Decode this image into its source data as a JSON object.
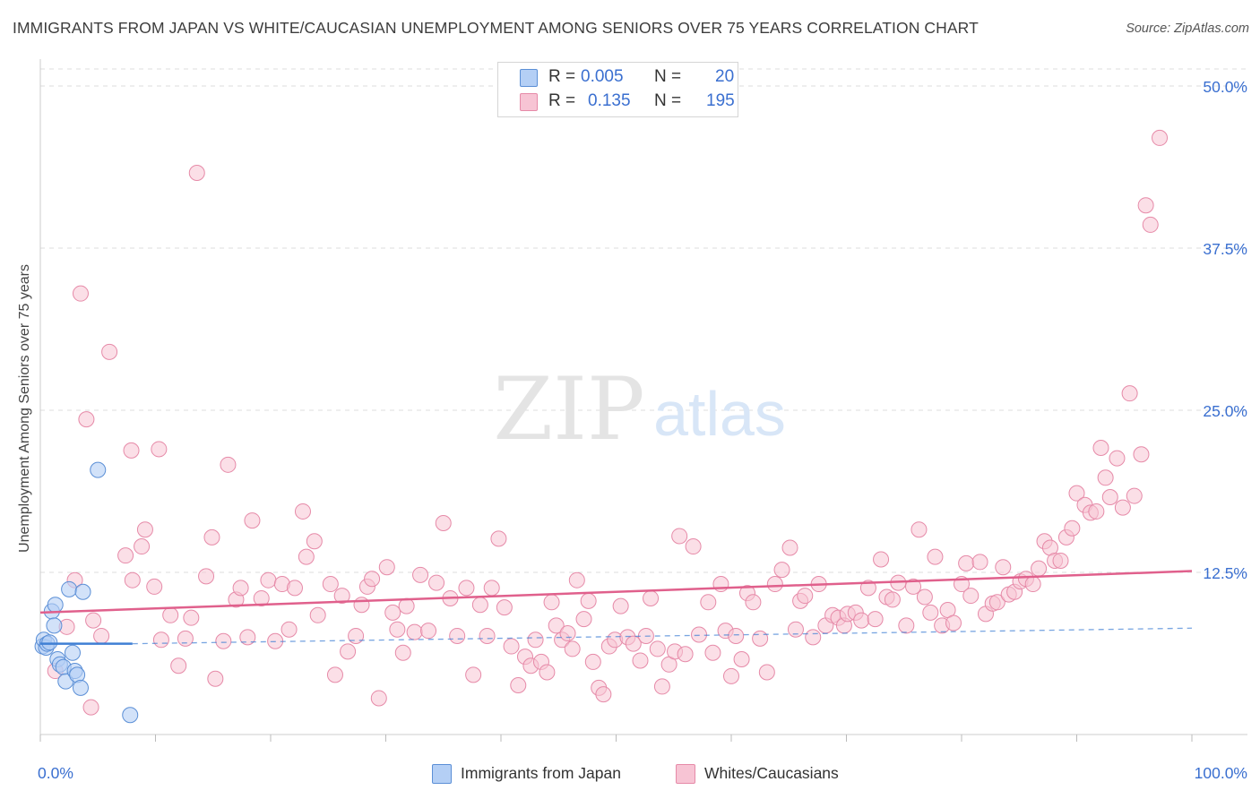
{
  "title": "IMMIGRANTS FROM JAPAN VS WHITE/CAUCASIAN UNEMPLOYMENT AMONG SENIORS OVER 75 YEARS CORRELATION CHART",
  "source": "Source: ZipAtlas.com",
  "watermark": {
    "zip": "ZIP",
    "atlas": "atlas"
  },
  "colors": {
    "japan_fill": "#b4cff5",
    "japan_stroke": "#5b8fd6",
    "japan_line": "#3f7fd4",
    "white_fill": "#f7c4d4",
    "white_stroke": "#e68aa8",
    "white_line": "#e0608c",
    "axis_label": "#3a6fd0",
    "grid": "#dddddd"
  },
  "legend": {
    "r_label": "R =",
    "n_label": "N =",
    "series": [
      {
        "name": "Immigrants from Japan",
        "r": "0.005",
        "n": "20"
      },
      {
        "name": "Whites/Caucasians",
        "r": "0.135",
        "n": "195"
      }
    ]
  },
  "chart_data": {
    "type": "scatter",
    "title": "IMMIGRANTS FROM JAPAN VS WHITE/CAUCASIAN UNEMPLOYMENT AMONG SENIORS OVER 75 YEARS CORRELATION CHART",
    "xlabel": "",
    "ylabel": "Unemployment Among Seniors over 75 years",
    "xlim": [
      0,
      100
    ],
    "ylim": [
      0,
      50
    ],
    "x_tick_labels": [
      "0.0%",
      "100.0%"
    ],
    "y_ticks": [
      12.5,
      25.0,
      37.5,
      50.0
    ],
    "y_tick_labels": [
      "12.5%",
      "25.0%",
      "37.5%",
      "50.0%"
    ],
    "grid": true,
    "legend_position": "top-center",
    "series": [
      {
        "name": "Immigrants from Japan",
        "trend": {
          "x": [
            0,
            8
          ],
          "y": [
            7.0,
            7.0
          ],
          "extended_to_x": 100,
          "extended_y": 8.2
        },
        "points": [
          [
            0.2,
            6.8
          ],
          [
            0.3,
            7.3
          ],
          [
            0.5,
            6.7
          ],
          [
            0.6,
            7.0
          ],
          [
            0.8,
            7.1
          ],
          [
            1.0,
            9.5
          ],
          [
            1.2,
            8.4
          ],
          [
            1.3,
            10.0
          ],
          [
            1.5,
            5.8
          ],
          [
            1.7,
            5.4
          ],
          [
            2.0,
            5.2
          ],
          [
            2.2,
            4.1
          ],
          [
            2.5,
            11.2
          ],
          [
            2.8,
            6.3
          ],
          [
            3.0,
            4.9
          ],
          [
            3.2,
            4.6
          ],
          [
            3.5,
            3.6
          ],
          [
            3.7,
            11.0
          ],
          [
            5.0,
            20.4
          ],
          [
            7.8,
            1.5
          ]
        ]
      },
      {
        "name": "Whites/Caucasians",
        "trend": {
          "x": [
            0,
            100
          ],
          "y": [
            9.4,
            12.6
          ]
        },
        "points": [
          [
            1.3,
            4.9
          ],
          [
            2.3,
            8.3
          ],
          [
            3.0,
            11.9
          ],
          [
            3.5,
            34.0
          ],
          [
            4.0,
            24.3
          ],
          [
            4.4,
            2.1
          ],
          [
            4.6,
            8.8
          ],
          [
            5.3,
            7.6
          ],
          [
            6.0,
            29.5
          ],
          [
            7.4,
            13.8
          ],
          [
            7.9,
            21.9
          ],
          [
            8.0,
            11.9
          ],
          [
            8.8,
            14.5
          ],
          [
            9.1,
            15.8
          ],
          [
            9.9,
            11.4
          ],
          [
            10.3,
            22.0
          ],
          [
            10.5,
            7.3
          ],
          [
            11.3,
            9.2
          ],
          [
            12.0,
            5.3
          ],
          [
            12.6,
            7.4
          ],
          [
            13.1,
            9.0
          ],
          [
            13.6,
            43.3
          ],
          [
            14.4,
            12.2
          ],
          [
            14.9,
            15.2
          ],
          [
            15.2,
            4.3
          ],
          [
            15.9,
            7.2
          ],
          [
            16.3,
            20.8
          ],
          [
            17.0,
            10.4
          ],
          [
            17.4,
            11.3
          ],
          [
            18.0,
            7.5
          ],
          [
            18.4,
            16.5
          ],
          [
            19.2,
            10.5
          ],
          [
            19.8,
            11.9
          ],
          [
            20.4,
            7.2
          ],
          [
            21.0,
            11.6
          ],
          [
            21.6,
            8.1
          ],
          [
            22.1,
            11.3
          ],
          [
            22.8,
            17.2
          ],
          [
            23.1,
            13.7
          ],
          [
            23.8,
            14.9
          ],
          [
            24.1,
            9.2
          ],
          [
            25.2,
            11.6
          ],
          [
            25.6,
            4.6
          ],
          [
            26.2,
            10.7
          ],
          [
            26.7,
            6.4
          ],
          [
            27.4,
            7.6
          ],
          [
            27.9,
            10.0
          ],
          [
            28.4,
            11.4
          ],
          [
            28.8,
            12.0
          ],
          [
            29.4,
            2.8
          ],
          [
            30.1,
            12.9
          ],
          [
            30.6,
            9.4
          ],
          [
            31.0,
            8.1
          ],
          [
            31.5,
            6.3
          ],
          [
            31.8,
            9.9
          ],
          [
            32.5,
            7.9
          ],
          [
            33.0,
            12.3
          ],
          [
            33.7,
            8.0
          ],
          [
            34.4,
            11.7
          ],
          [
            35.0,
            16.3
          ],
          [
            35.6,
            10.5
          ],
          [
            36.2,
            7.6
          ],
          [
            37.0,
            11.3
          ],
          [
            37.6,
            4.6
          ],
          [
            38.2,
            10.0
          ],
          [
            38.8,
            7.6
          ],
          [
            39.2,
            11.3
          ],
          [
            39.8,
            15.1
          ],
          [
            40.3,
            9.8
          ],
          [
            40.9,
            6.8
          ],
          [
            41.5,
            3.8
          ],
          [
            42.1,
            6.0
          ],
          [
            42.6,
            5.3
          ],
          [
            43.0,
            7.3
          ],
          [
            43.5,
            5.6
          ],
          [
            44.0,
            4.8
          ],
          [
            44.4,
            10.2
          ],
          [
            44.8,
            8.4
          ],
          [
            45.3,
            7.3
          ],
          [
            45.8,
            7.8
          ],
          [
            46.2,
            6.6
          ],
          [
            46.6,
            11.9
          ],
          [
            47.2,
            8.9
          ],
          [
            47.6,
            10.3
          ],
          [
            48.0,
            5.6
          ],
          [
            48.5,
            3.6
          ],
          [
            48.9,
            3.1
          ],
          [
            49.4,
            6.8
          ],
          [
            49.9,
            7.3
          ],
          [
            50.4,
            9.9
          ],
          [
            51.0,
            7.5
          ],
          [
            51.5,
            7.0
          ],
          [
            52.1,
            5.7
          ],
          [
            52.6,
            7.6
          ],
          [
            53.0,
            10.5
          ],
          [
            53.6,
            6.6
          ],
          [
            54.0,
            3.7
          ],
          [
            54.6,
            5.4
          ],
          [
            55.1,
            6.4
          ],
          [
            55.5,
            15.3
          ],
          [
            56.0,
            6.2
          ],
          [
            56.7,
            14.5
          ],
          [
            57.2,
            7.7
          ],
          [
            58.0,
            10.2
          ],
          [
            58.4,
            6.3
          ],
          [
            59.1,
            11.6
          ],
          [
            59.5,
            8.0
          ],
          [
            60.0,
            4.5
          ],
          [
            60.4,
            7.6
          ],
          [
            60.9,
            5.8
          ],
          [
            61.4,
            10.9
          ],
          [
            61.9,
            10.2
          ],
          [
            62.5,
            7.4
          ],
          [
            63.1,
            4.8
          ],
          [
            63.8,
            11.6
          ],
          [
            64.4,
            12.7
          ],
          [
            65.1,
            14.4
          ],
          [
            65.6,
            8.1
          ],
          [
            66.0,
            10.3
          ],
          [
            66.4,
            10.7
          ],
          [
            67.1,
            7.5
          ],
          [
            67.6,
            11.6
          ],
          [
            68.2,
            8.4
          ],
          [
            68.8,
            9.2
          ],
          [
            69.3,
            9.0
          ],
          [
            69.8,
            8.4
          ],
          [
            70.1,
            9.3
          ],
          [
            70.8,
            9.4
          ],
          [
            71.3,
            8.8
          ],
          [
            71.9,
            11.3
          ],
          [
            72.5,
            8.9
          ],
          [
            73.0,
            13.5
          ],
          [
            73.5,
            10.6
          ],
          [
            74.0,
            10.4
          ],
          [
            74.5,
            11.7
          ],
          [
            75.2,
            8.4
          ],
          [
            75.8,
            11.4
          ],
          [
            76.3,
            15.8
          ],
          [
            76.8,
            10.6
          ],
          [
            77.3,
            9.4
          ],
          [
            77.7,
            13.7
          ],
          [
            78.3,
            8.4
          ],
          [
            78.8,
            9.6
          ],
          [
            79.3,
            8.6
          ],
          [
            80.0,
            11.6
          ],
          [
            80.4,
            13.2
          ],
          [
            80.8,
            10.7
          ],
          [
            81.6,
            13.3
          ],
          [
            82.1,
            9.3
          ],
          [
            82.7,
            10.1
          ],
          [
            83.1,
            10.2
          ],
          [
            83.6,
            12.9
          ],
          [
            84.1,
            10.8
          ],
          [
            84.6,
            11.0
          ],
          [
            85.1,
            11.8
          ],
          [
            85.6,
            12.0
          ],
          [
            86.2,
            11.6
          ],
          [
            86.7,
            12.8
          ],
          [
            87.2,
            14.9
          ],
          [
            87.7,
            14.4
          ],
          [
            88.1,
            13.4
          ],
          [
            88.6,
            13.4
          ],
          [
            89.1,
            15.2
          ],
          [
            89.6,
            15.9
          ],
          [
            90.0,
            18.6
          ],
          [
            90.7,
            17.7
          ],
          [
            91.2,
            17.1
          ],
          [
            91.7,
            17.2
          ],
          [
            92.1,
            22.1
          ],
          [
            92.5,
            19.8
          ],
          [
            92.9,
            18.3
          ],
          [
            93.5,
            21.3
          ],
          [
            94.0,
            17.5
          ],
          [
            94.6,
            26.3
          ],
          [
            95.0,
            18.4
          ],
          [
            95.6,
            21.6
          ],
          [
            96.0,
            40.8
          ],
          [
            96.4,
            39.3
          ],
          [
            97.2,
            46.0
          ]
        ]
      }
    ]
  },
  "bottom_legend": [
    {
      "label": "Immigrants from Japan"
    },
    {
      "label": "Whites/Caucasians"
    }
  ]
}
